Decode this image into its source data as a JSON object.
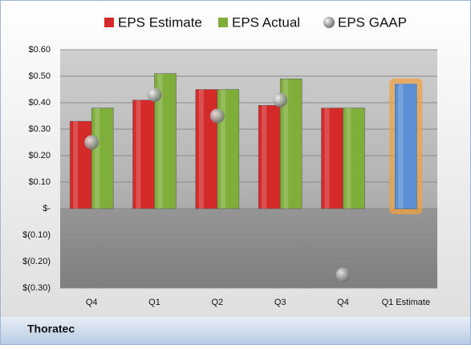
{
  "chart_data": {
    "type": "bar",
    "footer": "Thoratec",
    "categories": [
      "Q4",
      "Q1",
      "Q2",
      "Q3",
      "Q4",
      "Q1 Estimate"
    ],
    "series": [
      {
        "name": "EPS Estimate",
        "color": "#d42a2a",
        "values": [
          0.33,
          0.41,
          0.45,
          0.39,
          0.38,
          0.47
        ],
        "colors": [
          "#d42a2a",
          "#d42a2a",
          "#d42a2a",
          "#d42a2a",
          "#d42a2a",
          "#5b8fd6"
        ]
      },
      {
        "name": "EPS Actual",
        "color": "#7fae3a",
        "values": [
          0.38,
          0.51,
          0.45,
          0.49,
          0.38,
          null
        ]
      },
      {
        "name": "EPS GAAP",
        "color": "#a0a0a0",
        "marker": "sphere",
        "values": [
          0.25,
          0.43,
          0.35,
          0.41,
          -0.25,
          null
        ]
      }
    ],
    "ylim": [
      -0.3,
      0.6
    ],
    "yticks": [
      {
        "value": 0.6,
        "label": "$0.60"
      },
      {
        "value": 0.5,
        "label": "$0.50"
      },
      {
        "value": 0.4,
        "label": "$0.40"
      },
      {
        "value": 0.3,
        "label": "$0.30"
      },
      {
        "value": 0.2,
        "label": "$0.20"
      },
      {
        "value": 0.1,
        "label": "$0.10"
      },
      {
        "value": 0,
        "label": "$-"
      },
      {
        "value": -0.1,
        "label": "$(0.10)"
      },
      {
        "value": -0.2,
        "label": "$(0.20)"
      },
      {
        "value": -0.3,
        "label": "$(0.30)"
      }
    ],
    "grid": true,
    "legend": "top"
  }
}
